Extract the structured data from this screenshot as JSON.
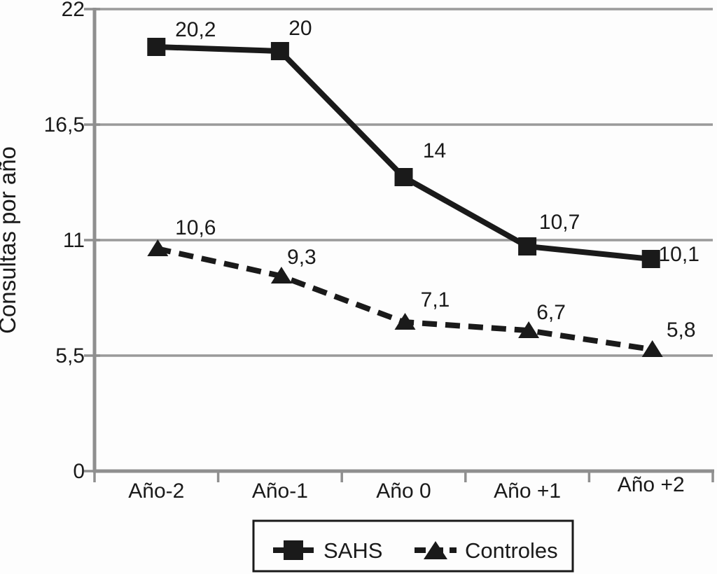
{
  "figure": {
    "background": "#fdfdfd",
    "ink_color": "#1a1a1a",
    "grid_color": "#9a9a9a",
    "axis_color": "#8f8f8f"
  },
  "chart_data": {
    "type": "line",
    "title": "",
    "ylabel": "Consultas por año",
    "xlabel": "",
    "categories": [
      "Año-2",
      "Año-1",
      "Año 0",
      "Año +1",
      "Año +2"
    ],
    "ylim": [
      0,
      22
    ],
    "grid": "horizontal",
    "legend_position": "bottom",
    "y_ticks": [
      {
        "value": 0,
        "label": "0"
      },
      {
        "value": 5.5,
        "label": "5,5"
      },
      {
        "value": 11,
        "label": "11"
      },
      {
        "value": 16.5,
        "label": "16,5"
      },
      {
        "value": 22,
        "label": "22"
      }
    ],
    "series": [
      {
        "name": "SAHS",
        "marker": "square",
        "line_style": "solid",
        "values": [
          20.2,
          20,
          14,
          10.7,
          10.1
        ],
        "labels": [
          "20,2",
          "20",
          "14",
          "10,7",
          "10,1"
        ]
      },
      {
        "name": "Controles",
        "marker": "triangle",
        "line_style": "dashed",
        "values": [
          10.6,
          9.3,
          7.1,
          6.7,
          5.8
        ],
        "labels": [
          "10,6",
          "9,3",
          "7,1",
          "6,7",
          "5,8"
        ]
      }
    ]
  }
}
